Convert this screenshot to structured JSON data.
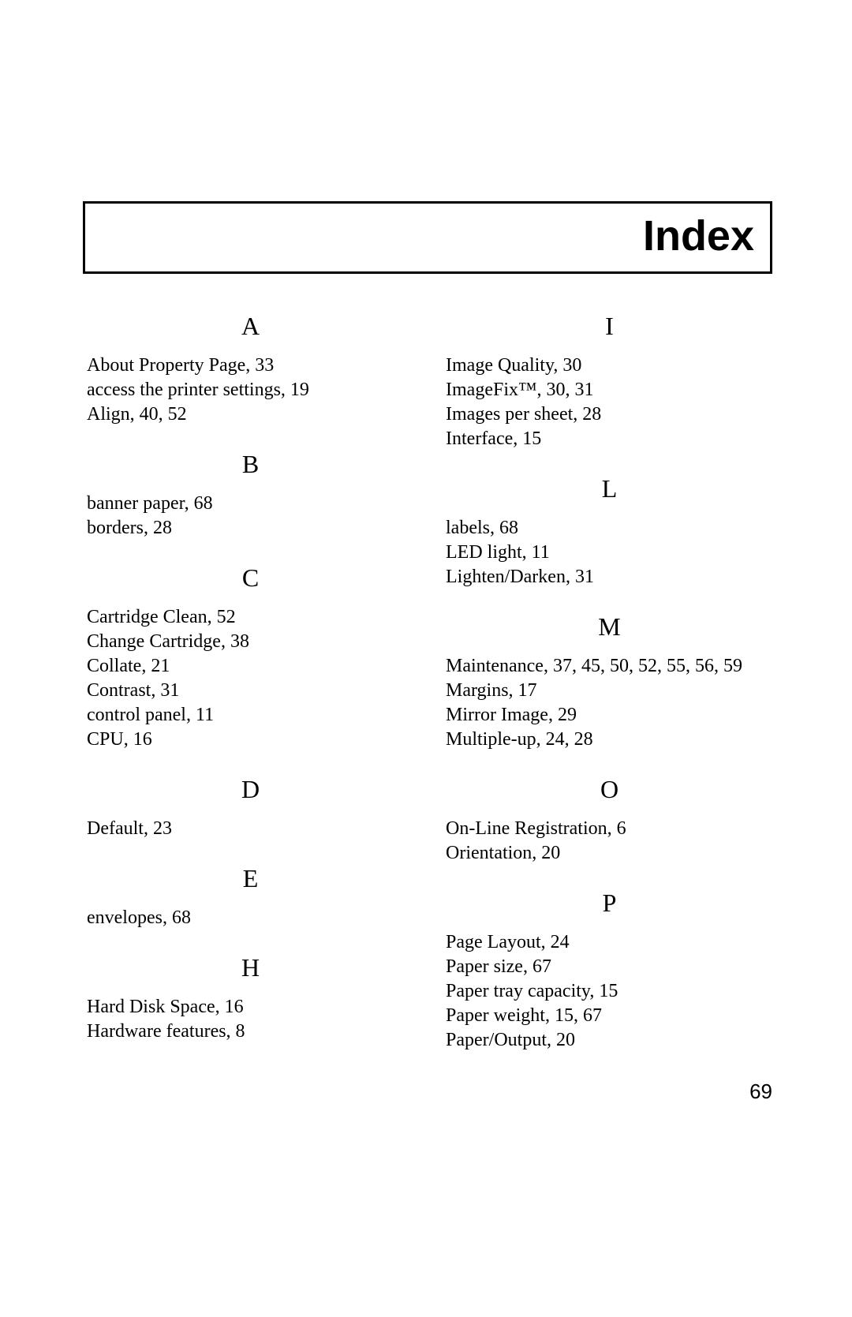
{
  "title": "Index",
  "pageNumber": "69",
  "columns": [
    {
      "sections": [
        {
          "letter": "A",
          "entries": [
            "About Property Page, 33",
            "access the printer settings, 19",
            "Align, 40, 52"
          ]
        },
        {
          "letter": "B",
          "entries": [
            "banner paper, 68",
            "borders, 28"
          ]
        },
        {
          "letter": "C",
          "entries": [
            "Cartridge Clean, 52",
            "Change Cartridge, 38",
            "Collate, 21",
            "Contrast, 31",
            "control panel, 11",
            "CPU, 16"
          ]
        },
        {
          "letter": "D",
          "entries": [
            "Default, 23"
          ]
        },
        {
          "letter": "E",
          "entries": [
            "envelopes, 68"
          ]
        },
        {
          "letter": "H",
          "entries": [
            "Hard Disk Space, 16",
            "Hardware features, 8"
          ]
        }
      ]
    },
    {
      "sections": [
        {
          "letter": "I",
          "entries": [
            "Image Quality, 30",
            "ImageFix™, 30, 31",
            "Images per sheet, 28",
            "Interface, 15"
          ]
        },
        {
          "letter": "L",
          "entries": [
            "labels, 68",
            "LED light, 11",
            "Lighten/Darken, 31"
          ]
        },
        {
          "letter": "M",
          "entries": [
            "Maintenance, 37, 45, 50, 52, 55, 56, 59",
            "Margins, 17",
            "Mirror Image, 29",
            "Multiple-up, 24, 28"
          ]
        },
        {
          "letter": "O",
          "entries": [
            "On-Line Registration, 6",
            "Orientation, 20"
          ]
        },
        {
          "letter": "P",
          "entries": [
            "Page Layout, 24",
            "Paper size, 67",
            "Paper tray capacity, 15",
            "Paper weight, 15, 67",
            "Paper/Output, 20"
          ]
        }
      ]
    }
  ]
}
